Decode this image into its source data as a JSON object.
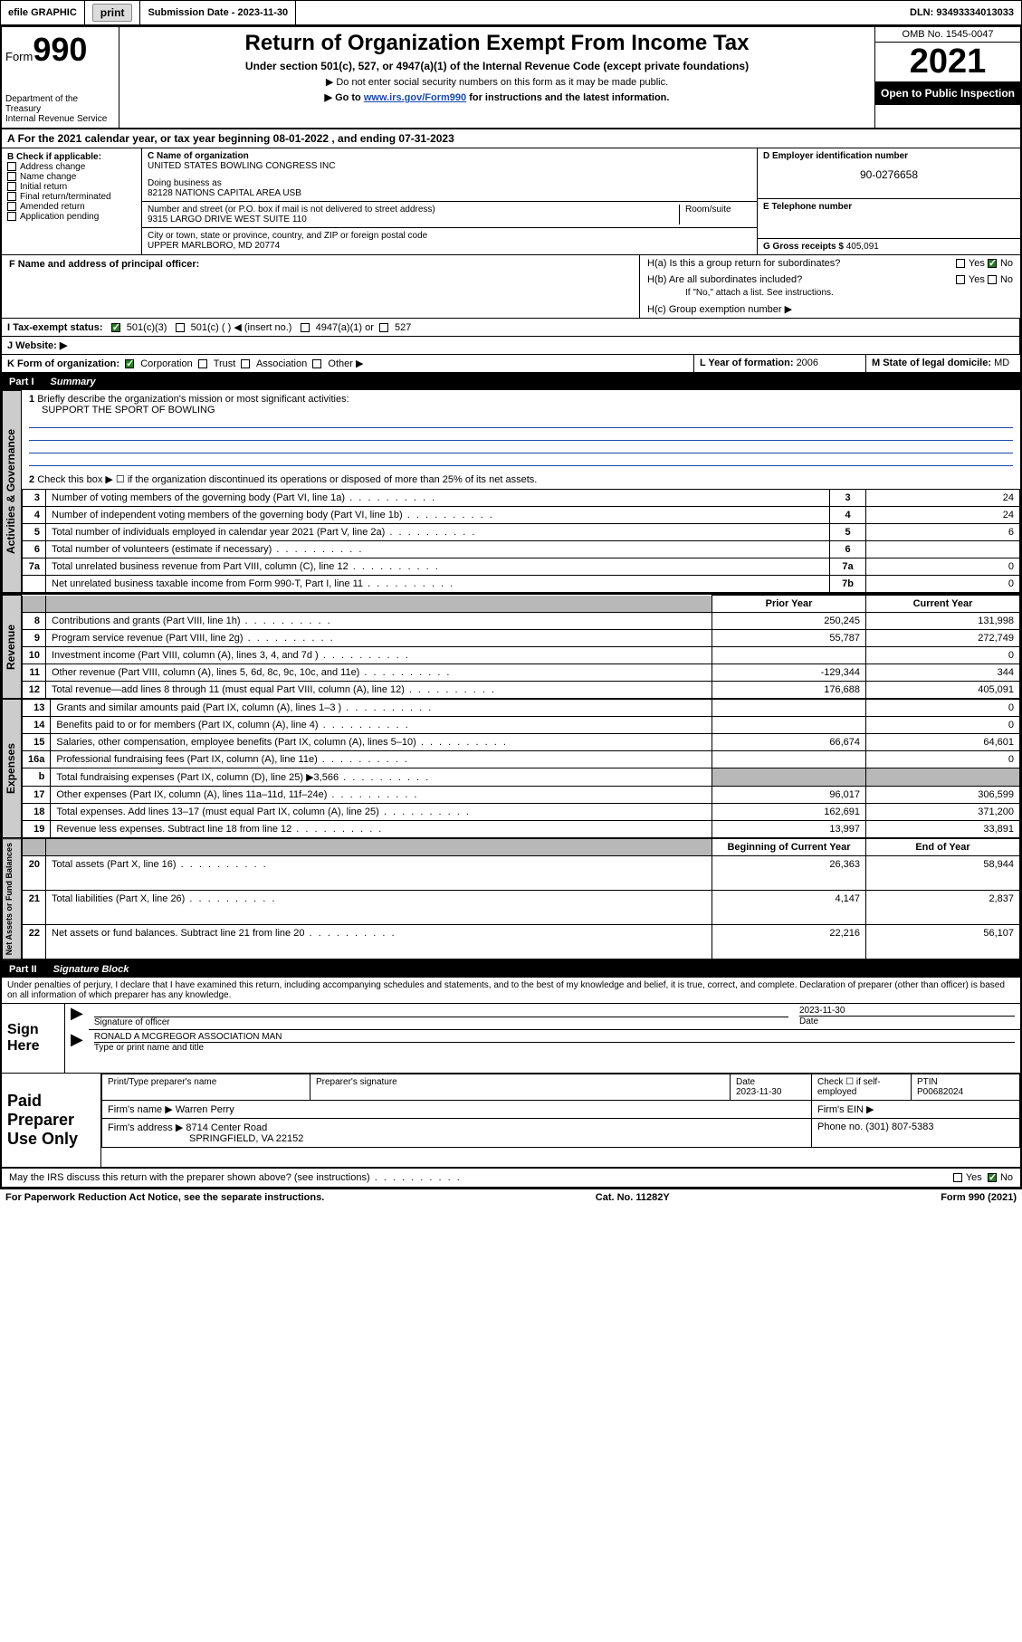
{
  "topbar": {
    "efile_label": "efile GRAPHIC",
    "print_btn": "print",
    "submission_label": "Submission Date - ",
    "submission_date": "2023-11-30",
    "dln_label": "DLN: ",
    "dln": "93493334013033"
  },
  "header": {
    "form_label": "Form",
    "form_number": "990",
    "dept": "Department of the Treasury",
    "irs": "Internal Revenue Service",
    "title": "Return of Organization Exempt From Income Tax",
    "subtitle": "Under section 501(c), 527, or 4947(a)(1) of the Internal Revenue Code (except private foundations)",
    "note1": "▶ Do not enter social security numbers on this form as it may be made public.",
    "note2_pre": "▶ Go to ",
    "note2_link": "www.irs.gov/Form990",
    "note2_post": " for instructions and the latest information.",
    "omb": "OMB No. 1545-0047",
    "year": "2021",
    "open_pub": "Open to Public Inspection"
  },
  "period": {
    "line": "For the 2021 calendar year, or tax year beginning 08-01-2022    , and ending 07-31-2023"
  },
  "boxB": {
    "label": "B Check if applicable:",
    "opts": [
      "Address change",
      "Name change",
      "Initial return",
      "Final return/terminated",
      "Amended return",
      "Application pending"
    ]
  },
  "boxC": {
    "name_lab": "C Name of organization",
    "name": "UNITED STATES BOWLING CONGRESS INC",
    "dba_lab": "Doing business as",
    "dba": "82128 NATIONS CAPITAL AREA USB",
    "street_lab": "Number and street (or P.O. box if mail is not delivered to street address)",
    "room_lab": "Room/suite",
    "street": "9315 LARGO DRIVE WEST SUITE 110",
    "city_lab": "City or town, state or province, country, and ZIP or foreign postal code",
    "city": "UPPER MARLBORO, MD  20774"
  },
  "boxD": {
    "lab": "D Employer identification number",
    "val": "90-0276658"
  },
  "boxE": {
    "lab": "E Telephone number",
    "val": ""
  },
  "boxG": {
    "lab": "G Gross receipts $ ",
    "val": "405,091"
  },
  "boxF": {
    "lab": "F  Name and address of principal officer:",
    "val": ""
  },
  "boxH": {
    "ha": "H(a)  Is this a group return for subordinates?",
    "ha_yes": "Yes",
    "ha_no": "No",
    "hb": "H(b)  Are all subordinates included?",
    "hb_note": "If \"No,\" attach a list. See instructions.",
    "hc": "H(c)  Group exemption number ▶"
  },
  "boxI": {
    "lab": "I   Tax-exempt status:",
    "o1": "501(c)(3)",
    "o2": "501(c) (   ) ◀ (insert no.)",
    "o3": "4947(a)(1) or",
    "o4": "527"
  },
  "boxJ": {
    "lab": "J   Website: ▶",
    "val": ""
  },
  "boxK": {
    "lab": "K Form of organization:",
    "o1": "Corporation",
    "o2": "Trust",
    "o3": "Association",
    "o4": "Other ▶"
  },
  "boxL": {
    "lab": "L Year of formation: ",
    "val": "2006"
  },
  "boxM": {
    "lab": "M State of legal domicile:",
    "val": "MD"
  },
  "part1": {
    "num": "Part I",
    "title": "Summary"
  },
  "summary": {
    "l1_lab": "Briefly describe the organization's mission or most significant activities:",
    "l1_val": "SUPPORT THE SPORT OF BOWLING",
    "l2": "Check this box ▶ ☐  if the organization discontinued its operations or disposed of more than 25% of its net assets.",
    "rows_top": [
      {
        "n": "3",
        "t": "Number of voting members of the governing body (Part VI, line 1a)",
        "k": "3",
        "v": "24"
      },
      {
        "n": "4",
        "t": "Number of independent voting members of the governing body (Part VI, line 1b)",
        "k": "4",
        "v": "24"
      },
      {
        "n": "5",
        "t": "Total number of individuals employed in calendar year 2021 (Part V, line 2a)",
        "k": "5",
        "v": "6"
      },
      {
        "n": "6",
        "t": "Total number of volunteers (estimate if necessary)",
        "k": "6",
        "v": ""
      },
      {
        "n": "7a",
        "t": "Total unrelated business revenue from Part VIII, column (C), line 12",
        "k": "7a",
        "v": "0"
      },
      {
        "n": "",
        "t": "Net unrelated business taxable income from Form 990-T, Part I, line 11",
        "k": "7b",
        "v": "0"
      }
    ],
    "col_prior": "Prior Year",
    "col_current": "Current Year",
    "col_boy": "Beginning of Current Year",
    "col_eoy": "End of Year",
    "revenue": [
      {
        "n": "8",
        "t": "Contributions and grants (Part VIII, line 1h)",
        "p": "250,245",
        "c": "131,998"
      },
      {
        "n": "9",
        "t": "Program service revenue (Part VIII, line 2g)",
        "p": "55,787",
        "c": "272,749"
      },
      {
        "n": "10",
        "t": "Investment income (Part VIII, column (A), lines 3, 4, and 7d )",
        "p": "",
        "c": "0"
      },
      {
        "n": "11",
        "t": "Other revenue (Part VIII, column (A), lines 5, 6d, 8c, 9c, 10c, and 11e)",
        "p": "-129,344",
        "c": "344"
      },
      {
        "n": "12",
        "t": "Total revenue—add lines 8 through 11 (must equal Part VIII, column (A), line 12)",
        "p": "176,688",
        "c": "405,091"
      }
    ],
    "expenses": [
      {
        "n": "13",
        "t": "Grants and similar amounts paid (Part IX, column (A), lines 1–3 )",
        "p": "",
        "c": "0"
      },
      {
        "n": "14",
        "t": "Benefits paid to or for members (Part IX, column (A), line 4)",
        "p": "",
        "c": "0"
      },
      {
        "n": "15",
        "t": "Salaries, other compensation, employee benefits (Part IX, column (A), lines 5–10)",
        "p": "66,674",
        "c": "64,601"
      },
      {
        "n": "16a",
        "t": "Professional fundraising fees (Part IX, column (A), line 11e)",
        "p": "",
        "c": "0"
      },
      {
        "n": "b",
        "t": "Total fundraising expenses (Part IX, column (D), line 25) ▶3,566",
        "p": "shade",
        "c": "shade"
      },
      {
        "n": "17",
        "t": "Other expenses (Part IX, column (A), lines 11a–11d, 11f–24e)",
        "p": "96,017",
        "c": "306,599"
      },
      {
        "n": "18",
        "t": "Total expenses. Add lines 13–17 (must equal Part IX, column (A), line 25)",
        "p": "162,691",
        "c": "371,200"
      },
      {
        "n": "19",
        "t": "Revenue less expenses. Subtract line 18 from line 12",
        "p": "13,997",
        "c": "33,891"
      }
    ],
    "netassets": [
      {
        "n": "20",
        "t": "Total assets (Part X, line 16)",
        "p": "26,363",
        "c": "58,944"
      },
      {
        "n": "21",
        "t": "Total liabilities (Part X, line 26)",
        "p": "4,147",
        "c": "2,837"
      },
      {
        "n": "22",
        "t": "Net assets or fund balances. Subtract line 21 from line 20",
        "p": "22,216",
        "c": "56,107"
      }
    ],
    "vtab_gov": "Activities & Governance",
    "vtab_rev": "Revenue",
    "vtab_exp": "Expenses",
    "vtab_net": "Net Assets or Fund Balances"
  },
  "part2": {
    "num": "Part II",
    "title": "Signature Block"
  },
  "sig": {
    "penalty": "Under penalties of perjury, I declare that I have examined this return, including accompanying schedules and statements, and to the best of my knowledge and belief, it is true, correct, and complete. Declaration of preparer (other than officer) is based on all information of which preparer has any knowledge.",
    "sign_here": "Sign Here",
    "sig_officer": "Signature of officer",
    "sig_date": "2023-11-30",
    "date_lab": "Date",
    "name_title": "RONALD A MCGREGOR  ASSOCIATION MAN",
    "name_lab": "Type or print name and title",
    "paid": "Paid Preparer Use Only",
    "prep_name_lab": "Print/Type preparer's name",
    "prep_sig_lab": "Preparer's signature",
    "prep_date_lab": "Date",
    "prep_date": "2023-11-30",
    "check_lab": "Check ☐ if self-employed",
    "ptin_lab": "PTIN",
    "ptin": "P00682024",
    "firm_name_lab": "Firm's name    ▶ ",
    "firm_name": "Warren Perry",
    "firm_ein_lab": "Firm's EIN ▶",
    "firm_addr_lab": "Firm's address ▶ ",
    "firm_addr1": "8714 Center Road",
    "firm_addr2": "SPRINGFIELD, VA  22152",
    "phone_lab": "Phone no. ",
    "phone": "(301) 807-5383",
    "discuss": "May the IRS discuss this return with the preparer shown above? (see instructions)",
    "yes": "Yes",
    "no": "No"
  },
  "footer": {
    "left": "For Paperwork Reduction Act Notice, see the separate instructions.",
    "mid": "Cat. No. 11282Y",
    "right": "Form 990 (2021)"
  }
}
